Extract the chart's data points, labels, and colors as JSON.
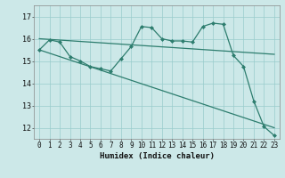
{
  "xlabel": "Humidex (Indice chaleur)",
  "background_color": "#cce8e8",
  "grid_color": "#99cccc",
  "line_color": "#2d7d6e",
  "xlim": [
    -0.5,
    23.5
  ],
  "ylim": [
    11.5,
    17.5
  ],
  "yticks": [
    12,
    13,
    14,
    15,
    16,
    17
  ],
  "xticks": [
    0,
    1,
    2,
    3,
    4,
    5,
    6,
    7,
    8,
    9,
    10,
    11,
    12,
    13,
    14,
    15,
    16,
    17,
    18,
    19,
    20,
    21,
    22,
    23
  ],
  "series": [
    {
      "x": [
        0,
        23
      ],
      "y": [
        16.0,
        15.3
      ],
      "marker": null,
      "linewidth": 0.9
    },
    {
      "x": [
        0,
        23
      ],
      "y": [
        15.5,
        12.0
      ],
      "marker": null,
      "linewidth": 0.9
    },
    {
      "x": [
        0,
        1,
        2,
        3,
        4,
        5,
        6,
        7,
        8,
        9,
        10,
        11,
        12,
        13,
        14,
        15,
        16,
        17,
        18,
        19,
        20,
        21,
        22,
        23
      ],
      "y": [
        15.5,
        15.95,
        15.85,
        15.2,
        15.0,
        14.75,
        14.65,
        14.55,
        15.1,
        15.65,
        16.55,
        16.5,
        16.0,
        15.9,
        15.9,
        15.85,
        16.55,
        16.7,
        16.65,
        15.25,
        14.75,
        13.2,
        12.05,
        11.65
      ],
      "marker": "D",
      "linewidth": 0.9
    }
  ]
}
